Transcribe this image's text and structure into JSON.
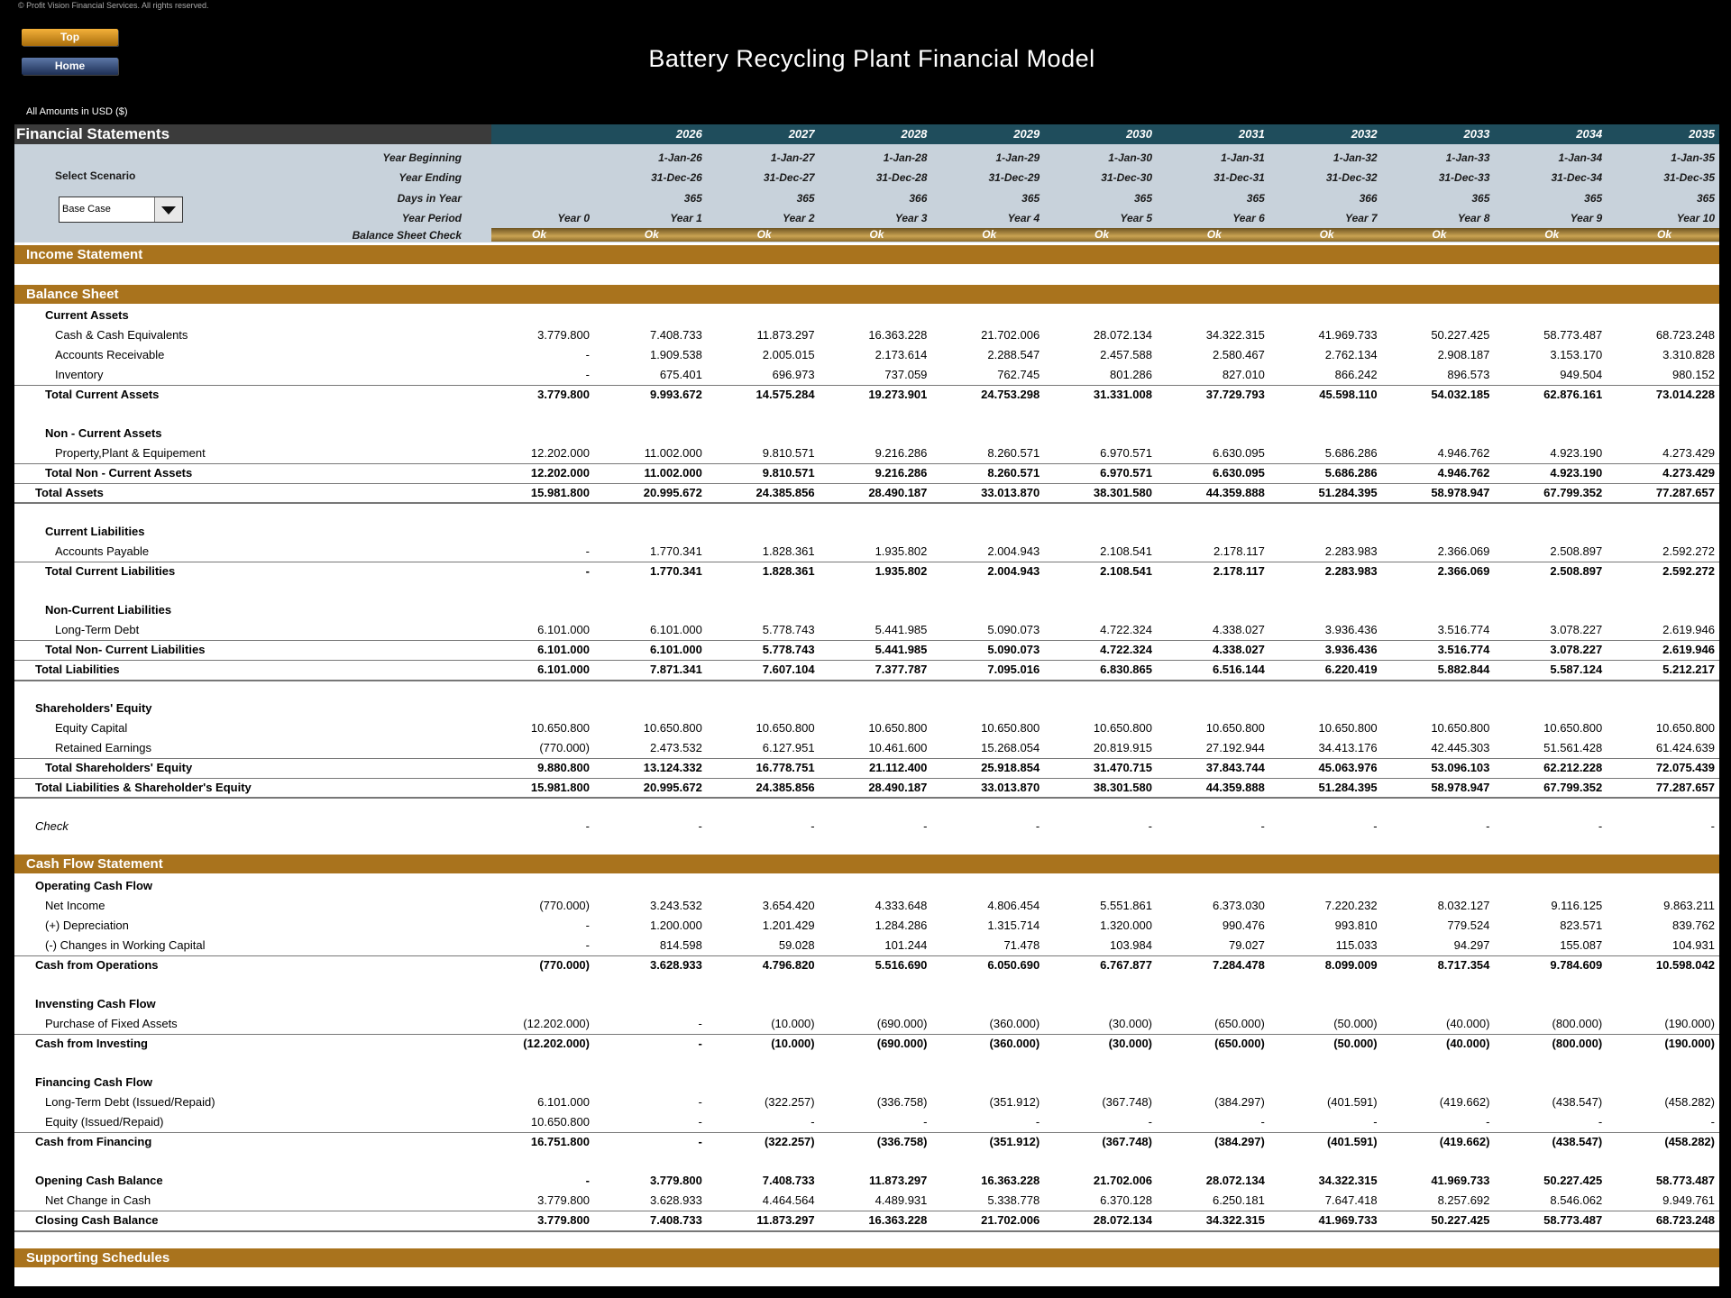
{
  "copyright": "© Profit Vision Financial Services. All rights reserved.",
  "nav": {
    "top": "Top",
    "home": "Home"
  },
  "title": "Battery Recycling Plant Financial Model",
  "units": "All Amounts in  USD ($)",
  "header": {
    "section": "Financial Statements",
    "years": [
      "2026",
      "2027",
      "2028",
      "2029",
      "2030",
      "2031",
      "2032",
      "2033",
      "2034",
      "2035"
    ],
    "select_label": "Select Scenario",
    "scenario": "Base Case",
    "timeline": [
      {
        "label": "Year Beginning",
        "values": [
          "1-Jan-26",
          "1-Jan-27",
          "1-Jan-28",
          "1-Jan-29",
          "1-Jan-30",
          "1-Jan-31",
          "1-Jan-32",
          "1-Jan-33",
          "1-Jan-34",
          "1-Jan-35"
        ]
      },
      {
        "label": "Year Ending",
        "values": [
          "31-Dec-26",
          "31-Dec-27",
          "31-Dec-28",
          "31-Dec-29",
          "31-Dec-30",
          "31-Dec-31",
          "31-Dec-32",
          "31-Dec-33",
          "31-Dec-34",
          "31-Dec-35"
        ]
      },
      {
        "label": "Days in Year",
        "values": [
          "365",
          "365",
          "366",
          "365",
          "365",
          "365",
          "366",
          "365",
          "365",
          "365"
        ]
      },
      {
        "label": "Year Period",
        "values": [
          "Year 0",
          "Year 1",
          "Year 2",
          "Year 3",
          "Year 4",
          "Year 5",
          "Year 6",
          "Year 7",
          "Year 8",
          "Year 9",
          "Year 10"
        ]
      }
    ],
    "check": {
      "label": "Balance Sheet Check",
      "values": [
        "Ok",
        "Ok",
        "Ok",
        "Ok",
        "Ok",
        "Ok",
        "Ok",
        "Ok",
        "Ok",
        "Ok",
        "Ok"
      ]
    }
  },
  "income_statement": {
    "title": "Income Statement"
  },
  "balance_sheet": {
    "title": "Balance Sheet",
    "groups": [
      [
        {
          "label": "Current Assets"
        },
        {
          "label": "Cash & Cash Equivalents",
          "values": [
            "3.779.800",
            "7.408.733",
            "11.873.297",
            "16.363.228",
            "21.702.006",
            "28.072.134",
            "34.322.315",
            "41.969.733",
            "50.227.425",
            "58.773.487",
            "68.723.248"
          ]
        },
        {
          "label": "Accounts Receivable",
          "values": [
            "-",
            "1.909.538",
            "2.005.015",
            "2.173.614",
            "2.288.547",
            "2.457.588",
            "2.580.467",
            "2.762.134",
            "2.908.187",
            "3.153.170",
            "3.310.828"
          ]
        },
        {
          "label": "Inventory",
          "values": [
            "-",
            "675.401",
            "696.973",
            "737.059",
            "762.745",
            "801.286",
            "827.010",
            "866.242",
            "896.573",
            "949.504",
            "980.152"
          ]
        },
        {
          "label": "Total Current Assets",
          "values": [
            "3.779.800",
            "9.993.672",
            "14.575.284",
            "19.273.901",
            "24.753.298",
            "31.331.008",
            "37.729.793",
            "45.598.110",
            "54.032.185",
            "62.876.161",
            "73.014.228"
          ]
        }
      ],
      [
        {
          "label": "Non - Current Assets"
        },
        {
          "label": "Property,Plant & Equipement",
          "values": [
            "12.202.000",
            "11.002.000",
            "9.810.571",
            "9.216.286",
            "8.260.571",
            "6.970.571",
            "6.630.095",
            "5.686.286",
            "4.946.762",
            "4.923.190",
            "4.273.429"
          ]
        },
        {
          "label": "Total Non - Current Assets",
          "values": [
            "12.202.000",
            "11.002.000",
            "9.810.571",
            "9.216.286",
            "8.260.571",
            "6.970.571",
            "6.630.095",
            "5.686.286",
            "4.946.762",
            "4.923.190",
            "4.273.429"
          ]
        },
        {
          "label": "Total Assets",
          "values": [
            "15.981.800",
            "20.995.672",
            "24.385.856",
            "28.490.187",
            "33.013.870",
            "38.301.580",
            "44.359.888",
            "51.284.395",
            "58.978.947",
            "67.799.352",
            "77.287.657"
          ]
        }
      ],
      [
        {
          "label": "Current Liabilities"
        },
        {
          "label": "Accounts Payable",
          "values": [
            "-",
            "1.770.341",
            "1.828.361",
            "1.935.802",
            "2.004.943",
            "2.108.541",
            "2.178.117",
            "2.283.983",
            "2.366.069",
            "2.508.897",
            "2.592.272"
          ]
        },
        {
          "label": "Total Current Liabilities",
          "values": [
            "-",
            "1.770.341",
            "1.828.361",
            "1.935.802",
            "2.004.943",
            "2.108.541",
            "2.178.117",
            "2.283.983",
            "2.366.069",
            "2.508.897",
            "2.592.272"
          ]
        }
      ],
      [
        {
          "label": "Non-Current Liabilities"
        },
        {
          "label": "Long-Term Debt",
          "values": [
            "6.101.000",
            "6.101.000",
            "5.778.743",
            "5.441.985",
            "5.090.073",
            "4.722.324",
            "4.338.027",
            "3.936.436",
            "3.516.774",
            "3.078.227",
            "2.619.946"
          ]
        },
        {
          "label": "Total Non- Current Liabilities",
          "values": [
            "6.101.000",
            "6.101.000",
            "5.778.743",
            "5.441.985",
            "5.090.073",
            "4.722.324",
            "4.338.027",
            "3.936.436",
            "3.516.774",
            "3.078.227",
            "2.619.946"
          ]
        },
        {
          "label": "Total Liabilities",
          "values": [
            "6.101.000",
            "7.871.341",
            "7.607.104",
            "7.377.787",
            "7.095.016",
            "6.830.865",
            "6.516.144",
            "6.220.419",
            "5.882.844",
            "5.587.124",
            "5.212.217"
          ]
        }
      ],
      [
        {
          "label": "Shareholders' Equity"
        },
        {
          "label": "Equity Capital",
          "values": [
            "10.650.800",
            "10.650.800",
            "10.650.800",
            "10.650.800",
            "10.650.800",
            "10.650.800",
            "10.650.800",
            "10.650.800",
            "10.650.800",
            "10.650.800",
            "10.650.800"
          ]
        },
        {
          "label": "Retained Earnings",
          "values": [
            "(770.000)",
            "2.473.532",
            "6.127.951",
            "10.461.600",
            "15.268.054",
            "20.819.915",
            "27.192.944",
            "34.413.176",
            "42.445.303",
            "51.561.428",
            "61.424.639"
          ]
        },
        {
          "label": "Total Shareholders' Equity",
          "values": [
            "9.880.800",
            "13.124.332",
            "16.778.751",
            "21.112.400",
            "25.918.854",
            "31.470.715",
            "37.843.744",
            "45.063.976",
            "53.096.103",
            "62.212.228",
            "72.075.439"
          ]
        },
        {
          "label": "Total Liabilities & Shareholder's Equity",
          "values": [
            "15.981.800",
            "20.995.672",
            "24.385.856",
            "28.490.187",
            "33.013.870",
            "38.301.580",
            "44.359.888",
            "51.284.395",
            "58.978.947",
            "67.799.352",
            "77.287.657"
          ]
        }
      ],
      [
        {
          "label": "Check",
          "values": [
            "-",
            "-",
            "-",
            "-",
            "-",
            "-",
            "-",
            "-",
            "-",
            "-",
            "-"
          ]
        }
      ]
    ]
  },
  "cash_flow": {
    "title": "Cash Flow Statement",
    "groups": [
      [
        {
          "label": "Operating Cash Flow"
        },
        {
          "label": "Net Income",
          "values": [
            "(770.000)",
            "3.243.532",
            "3.654.420",
            "4.333.648",
            "4.806.454",
            "5.551.861",
            "6.373.030",
            "7.220.232",
            "8.032.127",
            "9.116.125",
            "9.863.211"
          ]
        },
        {
          "label": "(+) Depreciation",
          "values": [
            "-",
            "1.200.000",
            "1.201.429",
            "1.284.286",
            "1.315.714",
            "1.320.000",
            "990.476",
            "993.810",
            "779.524",
            "823.571",
            "839.762"
          ]
        },
        {
          "label": "(-) Changes in Working Capital",
          "values": [
            "-",
            "814.598",
            "59.028",
            "101.244",
            "71.478",
            "103.984",
            "79.027",
            "115.033",
            "94.297",
            "155.087",
            "104.931"
          ]
        },
        {
          "label": "Cash from Operations",
          "values": [
            "(770.000)",
            "3.628.933",
            "4.796.820",
            "5.516.690",
            "6.050.690",
            "6.767.877",
            "7.284.478",
            "8.099.009",
            "8.717.354",
            "9.784.609",
            "10.598.042"
          ]
        }
      ],
      [
        {
          "label": "Invensting Cash Flow"
        },
        {
          "label": "Purchase of Fixed Assets",
          "values": [
            "(12.202.000)",
            "-",
            "(10.000)",
            "(690.000)",
            "(360.000)",
            "(30.000)",
            "(650.000)",
            "(50.000)",
            "(40.000)",
            "(800.000)",
            "(190.000)"
          ]
        },
        {
          "label": "Cash from Investing",
          "values": [
            "(12.202.000)",
            "-",
            "(10.000)",
            "(690.000)",
            "(360.000)",
            "(30.000)",
            "(650.000)",
            "(50.000)",
            "(40.000)",
            "(800.000)",
            "(190.000)"
          ]
        }
      ],
      [
        {
          "label": "Financing Cash Flow"
        },
        {
          "label": "Long-Term Debt (Issued/Repaid)",
          "values": [
            "6.101.000",
            "-",
            "(322.257)",
            "(336.758)",
            "(351.912)",
            "(367.748)",
            "(384.297)",
            "(401.591)",
            "(419.662)",
            "(438.547)",
            "(458.282)"
          ]
        },
        {
          "label": "Equity (Issued/Repaid)",
          "values": [
            "10.650.800",
            "-",
            "-",
            "-",
            "-",
            "-",
            "-",
            "-",
            "-",
            "-",
            "-"
          ]
        },
        {
          "label": "Cash from Financing",
          "values": [
            "16.751.800",
            "-",
            "(322.257)",
            "(336.758)",
            "(351.912)",
            "(367.748)",
            "(384.297)",
            "(401.591)",
            "(419.662)",
            "(438.547)",
            "(458.282)"
          ]
        }
      ],
      [
        {
          "label": "Opening Cash Balance",
          "values": [
            "-",
            "3.779.800",
            "7.408.733",
            "11.873.297",
            "16.363.228",
            "21.702.006",
            "28.072.134",
            "34.322.315",
            "41.969.733",
            "50.227.425",
            "58.773.487"
          ]
        },
        {
          "label": "Net Change in Cash",
          "values": [
            "3.779.800",
            "3.628.933",
            "4.464.564",
            "4.489.931",
            "5.338.778",
            "6.370.128",
            "6.250.181",
            "7.647.418",
            "8.257.692",
            "8.546.062",
            "9.949.761"
          ]
        },
        {
          "label": "Closing Cash Balance",
          "values": [
            "3.779.800",
            "7.408.733",
            "11.873.297",
            "16.363.228",
            "21.702.006",
            "28.072.134",
            "34.322.315",
            "41.969.733",
            "50.227.425",
            "58.773.487",
            "68.723.248"
          ]
        }
      ]
    ]
  },
  "supporting": {
    "title": "Supporting Schedules"
  }
}
